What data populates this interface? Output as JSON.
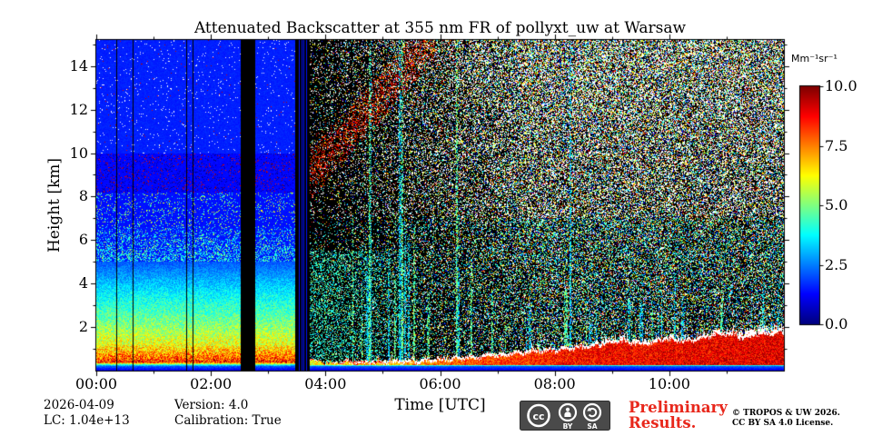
{
  "chart_data": {
    "type": "heatmap",
    "title": "Attenuated Backscatter at 355 nm FR of pollyxt_uw at Warsaw",
    "xlabel": "Time [UTC]",
    "ylabel": "Height [km]",
    "x_axis": {
      "range_hours": [
        0,
        12
      ],
      "labeled_ticks": [
        {
          "hour": 0,
          "label": "00:00"
        },
        {
          "hour": 2,
          "label": "02:00"
        },
        {
          "hour": 4,
          "label": "04:00"
        },
        {
          "hour": 6,
          "label": "06:00"
        },
        {
          "hour": 8,
          "label": "08:00"
        },
        {
          "hour": 10,
          "label": "10:00"
        }
      ],
      "minor_tick_hours": [
        1,
        3,
        5,
        7,
        9,
        11
      ]
    },
    "y_axis": {
      "range_km": [
        0,
        15.2
      ],
      "labeled_ticks": [
        {
          "km": 2,
          "label": "2"
        },
        {
          "km": 4,
          "label": "4"
        },
        {
          "km": 6,
          "label": "6"
        },
        {
          "km": 8,
          "label": "8"
        },
        {
          "km": 10,
          "label": "10"
        },
        {
          "km": 12,
          "label": "12"
        },
        {
          "km": 14,
          "label": "14"
        }
      ],
      "minor_tick_km": [
        1,
        3,
        5,
        7,
        9,
        11,
        13,
        15
      ]
    },
    "colorbar": {
      "label": "Mm⁻¹sr⁻¹",
      "colormap": "jet",
      "range": [
        0,
        10
      ],
      "ticks": [
        {
          "value": 0,
          "label": "0.0"
        },
        {
          "value": 2.5,
          "label": "2.5"
        },
        {
          "value": 5,
          "label": "5.0"
        },
        {
          "value": 7.5,
          "label": "7.5"
        },
        {
          "value": 10,
          "label": "10.0"
        }
      ]
    },
    "scene": {
      "seed": 1337,
      "night_end_hour": 3.47,
      "day_start_hour": 3.72,
      "data_gaps_hours": [
        [
          2.52,
          2.77
        ],
        [
          3.47,
          3.72
        ]
      ],
      "thin_gap_hours": [
        0.35,
        0.63,
        1.57,
        1.68
      ],
      "gap_blue_line_hours": [
        3.54,
        3.58,
        3.62,
        3.66
      ],
      "night_profile_points": [
        [
          0,
          1.0
        ],
        [
          0.2,
          2.2
        ],
        [
          0.28,
          4.5
        ],
        [
          0.38,
          8.5
        ],
        [
          0.65,
          7.6
        ],
        [
          1.2,
          6.1
        ],
        [
          2.4,
          4.7
        ],
        [
          3.6,
          3.6
        ],
        [
          5.0,
          2.1
        ]
      ],
      "night_bands": {
        "white_top_km": 10,
        "white_p": 0.025,
        "red_band_km": [
          8.2,
          10
        ],
        "red_p": 0.05,
        "dark_p": 0.1,
        "yellow_band_km": [
          6.6,
          8.2
        ],
        "yellow_p": 0.045,
        "green_p": 0.07,
        "green_zone_km": [
          5.0,
          6.6
        ],
        "green_p_bottom": 0.45,
        "green_p_top": 0.12,
        "bg_values": {
          "above10": 1.55,
          "band8to10": 1.3,
          "band66to82": 1.4,
          "band5to66": 1.45
        }
      },
      "sunrise_band": {
        "hours": [
          3.6,
          5.9
        ],
        "center_km": [
          8.6,
          15.4
        ],
        "half_width_km": 1.15,
        "extra_p": 0.35,
        "value_range": [
          7.4,
          9.9
        ]
      },
      "day_noise": {
        "p_start": 0.13,
        "p_end": 0.55,
        "ramp_hours": 4,
        "height_gain": 0.55,
        "palette_high": {
          "white": 0.45,
          "yellow": 0.12,
          "orange": 0.08,
          "red": 0.08,
          "green": 0.11,
          "cyan": 0.09,
          "blue": 0.07
        },
        "palette_low": {
          "white": 0.22,
          "yellow": 0.14,
          "orange": 0.07,
          "red": 0.07,
          "green": 0.24,
          "cyan": 0.17,
          "blue": 0.09
        }
      },
      "early_day_green": {
        "end_hour": 6.0,
        "top_km": 5.5,
        "p": 0.35
      },
      "boundary_layer_top_km": [
        [
          3.72,
          0.5
        ],
        [
          4.1,
          0.38
        ],
        [
          4.7,
          0.34
        ],
        [
          5.3,
          0.4
        ],
        [
          6.0,
          0.5
        ],
        [
          6.6,
          0.62
        ],
        [
          7.2,
          0.75
        ],
        [
          7.8,
          0.9
        ],
        [
          8.4,
          1.05
        ],
        [
          8.8,
          1.22
        ],
        [
          9.15,
          1.38
        ],
        [
          9.5,
          1.2
        ],
        [
          9.9,
          1.45
        ],
        [
          10.3,
          1.35
        ],
        [
          10.7,
          1.6
        ],
        [
          11.0,
          1.72
        ],
        [
          11.3,
          1.5
        ],
        [
          11.6,
          1.72
        ],
        [
          12.0,
          1.78
        ]
      ],
      "bl_warm_value": [
        [
          3.72,
          5.8
        ],
        [
          6.0,
          7.4
        ],
        [
          8.5,
          8.4
        ],
        [
          12.0,
          8.7
        ]
      ],
      "surface_strip_km": 0.2,
      "stripe_clusters": [
        {
          "hours": [
            4.35,
            6.6
          ],
          "n": 18,
          "top_km": [
            2.5,
            8.0
          ],
          "tall_p": 0.22
        },
        {
          "hours": [
            6.6,
            9.0
          ],
          "n": 12,
          "top_km": [
            1.8,
            5.0
          ],
          "tall_p": 0.08
        },
        {
          "hours": [
            9.0,
            11.95
          ],
          "n": 15,
          "top_km": [
            2.0,
            4.6
          ],
          "tall_p": 0.05
        }
      ]
    }
  },
  "footer": {
    "date": "2026-04-09",
    "lc": "LC: 1.04e+13",
    "version": "Version: 4.0",
    "calibration": "Calibration: True"
  },
  "license": {
    "preliminary": "Preliminary Results.",
    "copyright_line1": "© TROPOS & UW 2026.",
    "copyright_line2": "CC BY SA 4.0 License.",
    "badge": {
      "cc": "cc",
      "by": "BY",
      "sa": "SA"
    }
  }
}
